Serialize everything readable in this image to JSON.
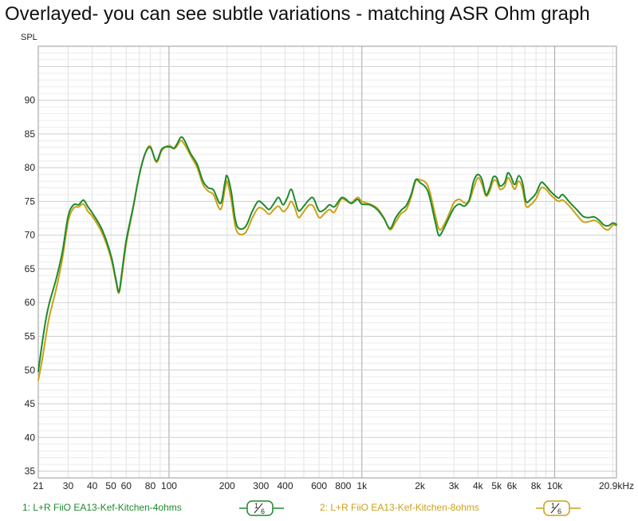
{
  "title": "Overlayed- you can see subtle variations - matching ASR Ohm graph",
  "chart_data": {
    "type": "line",
    "xscale": "log",
    "xlim": [
      21,
      20900
    ],
    "ylim": [
      34,
      98
    ],
    "ylabel": "SPL",
    "xunit": "kHz",
    "grid": true,
    "x_tick_values": [
      21,
      30,
      40,
      50,
      60,
      80,
      100,
      200,
      300,
      400,
      600,
      800,
      1000,
      2000,
      3000,
      4000,
      5000,
      6000,
      8000,
      10000,
      20900
    ],
    "x_tick_labels": [
      "21",
      "30",
      "40",
      "50",
      "60",
      "80",
      "100",
      "200",
      "300",
      "400",
      "600",
      "800",
      "1k",
      "2k",
      "3k",
      "4k",
      "5k",
      "6k",
      "8k",
      "10k",
      "20.9kHz"
    ],
    "y_ticks": [
      35,
      40,
      45,
      50,
      55,
      60,
      65,
      70,
      75,
      80,
      85,
      90
    ],
    "series": [
      {
        "name": "1: L+R FiiO EA13-Kef-Kitchen-4ohms",
        "color": "#1e8a2e",
        "points": [
          [
            21,
            49.8
          ],
          [
            22,
            54
          ],
          [
            23,
            57.5
          ],
          [
            24,
            60
          ],
          [
            26,
            63.5
          ],
          [
            28,
            67.5
          ],
          [
            30,
            72.8
          ],
          [
            32,
            74.5
          ],
          [
            34,
            74.5
          ],
          [
            36,
            75.2
          ],
          [
            38,
            74.2
          ],
          [
            40,
            73.3
          ],
          [
            45,
            70.8
          ],
          [
            50,
            67
          ],
          [
            53,
            63.5
          ],
          [
            55,
            61.6
          ],
          [
            57,
            64.5
          ],
          [
            60,
            69.2
          ],
          [
            65,
            74
          ],
          [
            70,
            78.8
          ],
          [
            75,
            82
          ],
          [
            80,
            83
          ],
          [
            86,
            81
          ],
          [
            92,
            82.8
          ],
          [
            100,
            83.1
          ],
          [
            106,
            82.9
          ],
          [
            110,
            83.5
          ],
          [
            115,
            84.5
          ],
          [
            120,
            84.1
          ],
          [
            130,
            82
          ],
          [
            140,
            80.5
          ],
          [
            150,
            78
          ],
          [
            160,
            77
          ],
          [
            170,
            76.7
          ],
          [
            185,
            74.7
          ],
          [
            195,
            77.8
          ],
          [
            200,
            78.8
          ],
          [
            210,
            76.5
          ],
          [
            220,
            72.5
          ],
          [
            230,
            71
          ],
          [
            250,
            71.3
          ],
          [
            270,
            73.5
          ],
          [
            290,
            75
          ],
          [
            310,
            74.5
          ],
          [
            330,
            73.8
          ],
          [
            350,
            74.7
          ],
          [
            370,
            75.6
          ],
          [
            390,
            74.5
          ],
          [
            410,
            75.5
          ],
          [
            430,
            76.8
          ],
          [
            450,
            75.2
          ],
          [
            470,
            73.6
          ],
          [
            500,
            74.3
          ],
          [
            530,
            75.2
          ],
          [
            560,
            75.5
          ],
          [
            600,
            73.6
          ],
          [
            640,
            73.8
          ],
          [
            680,
            74.5
          ],
          [
            720,
            74.2
          ],
          [
            780,
            75.5
          ],
          [
            820,
            75.4
          ],
          [
            880,
            74.7
          ],
          [
            950,
            75.3
          ],
          [
            1000,
            74.6
          ],
          [
            1100,
            74.5
          ],
          [
            1200,
            73.8
          ],
          [
            1300,
            72.5
          ],
          [
            1400,
            71
          ],
          [
            1500,
            72.6
          ],
          [
            1600,
            73.7
          ],
          [
            1700,
            74.4
          ],
          [
            1800,
            76
          ],
          [
            1900,
            78.2
          ],
          [
            2000,
            77.8
          ],
          [
            2200,
            76.5
          ],
          [
            2400,
            72
          ],
          [
            2500,
            70
          ],
          [
            2600,
            70.4
          ],
          [
            2800,
            72.3
          ],
          [
            3000,
            74
          ],
          [
            3200,
            74.6
          ],
          [
            3400,
            74.3
          ],
          [
            3600,
            75.2
          ],
          [
            3800,
            78
          ],
          [
            4000,
            79
          ],
          [
            4200,
            78.2
          ],
          [
            4400,
            76
          ],
          [
            4600,
            77
          ],
          [
            4800,
            78.6
          ],
          [
            5000,
            78.5
          ],
          [
            5200,
            77.3
          ],
          [
            5500,
            77.8
          ],
          [
            5700,
            79.2
          ],
          [
            5900,
            78.8
          ],
          [
            6200,
            77.5
          ],
          [
            6500,
            78.8
          ],
          [
            6800,
            77.8
          ],
          [
            7100,
            75
          ],
          [
            7500,
            75.3
          ],
          [
            8000,
            76.2
          ],
          [
            8500,
            77.8
          ],
          [
            9000,
            77.3
          ],
          [
            9500,
            76.5
          ],
          [
            10000,
            75.9
          ],
          [
            10500,
            75.5
          ],
          [
            11000,
            76
          ],
          [
            12000,
            74.8
          ],
          [
            13000,
            73.8
          ],
          [
            14000,
            72.8
          ],
          [
            15000,
            72.6
          ],
          [
            16000,
            72.7
          ],
          [
            17000,
            72.2
          ],
          [
            18000,
            71.5
          ],
          [
            19000,
            71.4
          ],
          [
            20000,
            71.8
          ],
          [
            20900,
            71.6
          ]
        ]
      },
      {
        "name": "2: L+R FiiO EA13-Kef-Kitchen-8ohms",
        "color": "#c9a218",
        "points": [
          [
            21,
            48.5
          ],
          [
            22,
            51.5
          ],
          [
            23,
            55
          ],
          [
            24,
            58
          ],
          [
            26,
            62
          ],
          [
            28,
            66.5
          ],
          [
            30,
            72
          ],
          [
            32,
            74
          ],
          [
            34,
            74.2
          ],
          [
            36,
            74.6
          ],
          [
            38,
            73.5
          ],
          [
            40,
            72.8
          ],
          [
            45,
            70.3
          ],
          [
            50,
            66.6
          ],
          [
            53,
            63.2
          ],
          [
            55,
            61.4
          ],
          [
            57,
            64
          ],
          [
            60,
            68.7
          ],
          [
            65,
            73.8
          ],
          [
            70,
            78.8
          ],
          [
            75,
            82
          ],
          [
            80,
            83.2
          ],
          [
            86,
            80.8
          ],
          [
            92,
            82.6
          ],
          [
            100,
            83.3
          ],
          [
            106,
            82.8
          ],
          [
            110,
            83.2
          ],
          [
            115,
            84
          ],
          [
            120,
            83.5
          ],
          [
            130,
            81.7
          ],
          [
            140,
            80
          ],
          [
            150,
            77.5
          ],
          [
            160,
            76.5
          ],
          [
            170,
            76
          ],
          [
            185,
            73.8
          ],
          [
            195,
            76.8
          ],
          [
            200,
            78
          ],
          [
            210,
            75.3
          ],
          [
            220,
            71.5
          ],
          [
            230,
            70.2
          ],
          [
            250,
            70.4
          ],
          [
            270,
            72.5
          ],
          [
            290,
            74
          ],
          [
            310,
            73.8
          ],
          [
            330,
            73.1
          ],
          [
            350,
            73.8
          ],
          [
            370,
            74.3
          ],
          [
            390,
            73.5
          ],
          [
            410,
            74
          ],
          [
            430,
            75
          ],
          [
            450,
            74
          ],
          [
            470,
            72.6
          ],
          [
            500,
            73.5
          ],
          [
            530,
            74.4
          ],
          [
            560,
            74.3
          ],
          [
            600,
            72.6
          ],
          [
            640,
            73.2
          ],
          [
            680,
            73.8
          ],
          [
            720,
            73.4
          ],
          [
            780,
            75.3
          ],
          [
            820,
            75.2
          ],
          [
            880,
            74.8
          ],
          [
            950,
            75.6
          ],
          [
            1000,
            75
          ],
          [
            1100,
            74.6
          ],
          [
            1200,
            74
          ],
          [
            1300,
            72.6
          ],
          [
            1400,
            70.8
          ],
          [
            1500,
            72
          ],
          [
            1600,
            73.2
          ],
          [
            1700,
            73.8
          ],
          [
            1800,
            75.6
          ],
          [
            1900,
            78
          ],
          [
            2000,
            78.2
          ],
          [
            2200,
            77.3
          ],
          [
            2400,
            73
          ],
          [
            2500,
            71
          ],
          [
            2600,
            71
          ],
          [
            2800,
            72.8
          ],
          [
            3000,
            74.8
          ],
          [
            3200,
            75.3
          ],
          [
            3400,
            74.8
          ],
          [
            3600,
            75
          ],
          [
            3800,
            77
          ],
          [
            4000,
            78.5
          ],
          [
            4200,
            77.5
          ],
          [
            4400,
            75.8
          ],
          [
            4600,
            76.5
          ],
          [
            4800,
            78
          ],
          [
            5000,
            78
          ],
          [
            5200,
            76.8
          ],
          [
            5500,
            77.2
          ],
          [
            5700,
            78.5
          ],
          [
            5900,
            78
          ],
          [
            6200,
            76.8
          ],
          [
            6500,
            78
          ],
          [
            6800,
            76.9
          ],
          [
            7100,
            74.3
          ],
          [
            7500,
            74.5
          ],
          [
            8000,
            75.4
          ],
          [
            8500,
            77
          ],
          [
            9000,
            76.8
          ],
          [
            9500,
            76
          ],
          [
            10000,
            75.4
          ],
          [
            10500,
            75
          ],
          [
            11000,
            75.2
          ],
          [
            12000,
            74.2
          ],
          [
            13000,
            73
          ],
          [
            14000,
            72
          ],
          [
            15000,
            72
          ],
          [
            16000,
            72.2
          ],
          [
            17000,
            71.8
          ],
          [
            18000,
            71
          ],
          [
            19000,
            70.8
          ],
          [
            20000,
            71.5
          ],
          [
            20900,
            71.4
          ]
        ]
      }
    ]
  },
  "legend": {
    "items": [
      {
        "label": "1: L+R FiiO EA13-Kef-Kitchen-4ohms",
        "color": "#1e8a2e"
      },
      {
        "label": "2: L+R FiiO EA13-Kef-Kitchen-8ohms",
        "color": "#c9a218"
      }
    ],
    "smoothing_num": "1",
    "smoothing_den": "6"
  }
}
